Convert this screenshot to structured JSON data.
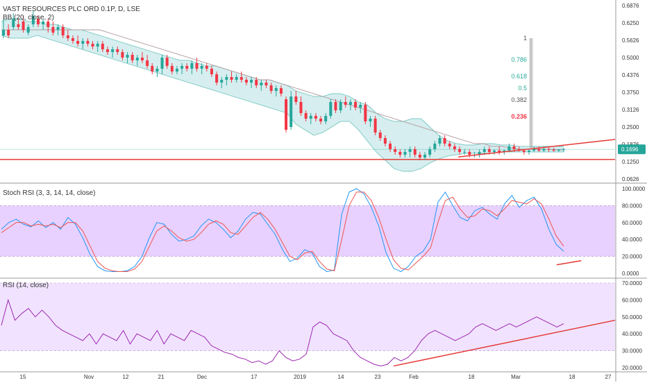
{
  "chart_data": [
    {
      "type": "candlestick",
      "title": "VAST RESOURCES PLC ORD 0.1P, D, LSE",
      "indicator_label": "BB (20, close, 2)",
      "ylim": [
        0.0626,
        0.6876
      ],
      "y_ticks": [
        "0.6876",
        "0.6250",
        "0.5626",
        "0.5000",
        "0.4376",
        "0.3750",
        "0.3126",
        "0.2500",
        "0.1876",
        "0.1250",
        "0.0626"
      ],
      "y_tick_values": [
        0.6876,
        0.625,
        0.5626,
        0.5,
        0.4376,
        0.375,
        0.3126,
        0.25,
        0.1876,
        0.125,
        0.0626
      ],
      "last_price": "0.1696",
      "last_price_value": 0.1696,
      "support_level": 0.133,
      "candles": [
        [
          0.58,
          0.64,
          0.57,
          0.6
        ],
        [
          0.6,
          0.62,
          0.57,
          0.58
        ],
        [
          0.61,
          0.66,
          0.6,
          0.64
        ],
        [
          0.62,
          0.64,
          0.6,
          0.61
        ],
        [
          0.63,
          0.65,
          0.59,
          0.6
        ],
        [
          0.59,
          0.62,
          0.58,
          0.61
        ],
        [
          0.62,
          0.67,
          0.61,
          0.65
        ],
        [
          0.64,
          0.65,
          0.61,
          0.62
        ],
        [
          0.62,
          0.64,
          0.6,
          0.63
        ],
        [
          0.63,
          0.64,
          0.59,
          0.61
        ],
        [
          0.61,
          0.63,
          0.58,
          0.59
        ],
        [
          0.6,
          0.62,
          0.58,
          0.61
        ],
        [
          0.61,
          0.62,
          0.57,
          0.58
        ],
        [
          0.58,
          0.6,
          0.56,
          0.57
        ],
        [
          0.57,
          0.58,
          0.55,
          0.56
        ],
        [
          0.56,
          0.58,
          0.54,
          0.55
        ],
        [
          0.55,
          0.57,
          0.53,
          0.56
        ],
        [
          0.56,
          0.57,
          0.54,
          0.55
        ],
        [
          0.55,
          0.56,
          0.53,
          0.54
        ],
        [
          0.54,
          0.56,
          0.52,
          0.55
        ],
        [
          0.55,
          0.56,
          0.52,
          0.53
        ],
        [
          0.53,
          0.54,
          0.51,
          0.52
        ],
        [
          0.52,
          0.54,
          0.5,
          0.53
        ],
        [
          0.53,
          0.54,
          0.51,
          0.52
        ],
        [
          0.52,
          0.53,
          0.49,
          0.5
        ],
        [
          0.5,
          0.52,
          0.48,
          0.51
        ],
        [
          0.51,
          0.52,
          0.48,
          0.49
        ],
        [
          0.49,
          0.51,
          0.47,
          0.5
        ],
        [
          0.5,
          0.52,
          0.48,
          0.49
        ],
        [
          0.49,
          0.51,
          0.46,
          0.47
        ],
        [
          0.47,
          0.48,
          0.44,
          0.45
        ],
        [
          0.45,
          0.47,
          0.43,
          0.46
        ],
        [
          0.46,
          0.51,
          0.44,
          0.5
        ],
        [
          0.5,
          0.51,
          0.46,
          0.47
        ],
        [
          0.47,
          0.48,
          0.44,
          0.45
        ],
        [
          0.45,
          0.47,
          0.44,
          0.46
        ],
        [
          0.46,
          0.48,
          0.44,
          0.47
        ],
        [
          0.47,
          0.48,
          0.45,
          0.46
        ],
        [
          0.46,
          0.49,
          0.44,
          0.48
        ],
        [
          0.48,
          0.5,
          0.45,
          0.46
        ],
        [
          0.46,
          0.48,
          0.44,
          0.47
        ],
        [
          0.47,
          0.48,
          0.45,
          0.46
        ],
        [
          0.46,
          0.47,
          0.43,
          0.44
        ],
        [
          0.44,
          0.45,
          0.4,
          0.41
        ],
        [
          0.41,
          0.43,
          0.39,
          0.42
        ],
        [
          0.42,
          0.44,
          0.4,
          0.43
        ],
        [
          0.43,
          0.45,
          0.41,
          0.42
        ],
        [
          0.42,
          0.44,
          0.41,
          0.43
        ],
        [
          0.43,
          0.45,
          0.41,
          0.42
        ],
        [
          0.42,
          0.43,
          0.4,
          0.41
        ],
        [
          0.41,
          0.43,
          0.39,
          0.42
        ],
        [
          0.42,
          0.43,
          0.39,
          0.4
        ],
        [
          0.4,
          0.42,
          0.38,
          0.41
        ],
        [
          0.41,
          0.42,
          0.39,
          0.4
        ],
        [
          0.4,
          0.41,
          0.37,
          0.38
        ],
        [
          0.38,
          0.4,
          0.36,
          0.39
        ],
        [
          0.39,
          0.4,
          0.36,
          0.37
        ],
        [
          0.35,
          0.36,
          0.23,
          0.24
        ],
        [
          0.25,
          0.38,
          0.24,
          0.36
        ],
        [
          0.36,
          0.38,
          0.33,
          0.34
        ],
        [
          0.34,
          0.36,
          0.29,
          0.3
        ],
        [
          0.3,
          0.31,
          0.27,
          0.28
        ],
        [
          0.28,
          0.3,
          0.26,
          0.29
        ],
        [
          0.29,
          0.3,
          0.27,
          0.28
        ],
        [
          0.28,
          0.29,
          0.26,
          0.27
        ],
        [
          0.27,
          0.3,
          0.26,
          0.29
        ],
        [
          0.29,
          0.35,
          0.28,
          0.34
        ],
        [
          0.34,
          0.35,
          0.3,
          0.31
        ],
        [
          0.31,
          0.35,
          0.3,
          0.34
        ],
        [
          0.34,
          0.36,
          0.32,
          0.33
        ],
        [
          0.33,
          0.35,
          0.31,
          0.34
        ],
        [
          0.34,
          0.35,
          0.31,
          0.32
        ],
        [
          0.32,
          0.34,
          0.3,
          0.33
        ],
        [
          0.33,
          0.34,
          0.26,
          0.27
        ],
        [
          0.27,
          0.29,
          0.25,
          0.28
        ],
        [
          0.28,
          0.29,
          0.22,
          0.23
        ],
        [
          0.23,
          0.24,
          0.2,
          0.21
        ],
        [
          0.21,
          0.22,
          0.18,
          0.19
        ],
        [
          0.19,
          0.2,
          0.16,
          0.17
        ],
        [
          0.17,
          0.18,
          0.15,
          0.16
        ],
        [
          0.16,
          0.17,
          0.14,
          0.15
        ],
        [
          0.15,
          0.17,
          0.14,
          0.16
        ],
        [
          0.16,
          0.18,
          0.14,
          0.17
        ],
        [
          0.17,
          0.18,
          0.14,
          0.15
        ],
        [
          0.15,
          0.16,
          0.13,
          0.14
        ],
        [
          0.14,
          0.16,
          0.13,
          0.15
        ],
        [
          0.15,
          0.18,
          0.14,
          0.17
        ],
        [
          0.17,
          0.2,
          0.16,
          0.19
        ],
        [
          0.19,
          0.22,
          0.18,
          0.21
        ],
        [
          0.21,
          0.22,
          0.18,
          0.19
        ],
        [
          0.19,
          0.2,
          0.17,
          0.18
        ],
        [
          0.18,
          0.19,
          0.16,
          0.17
        ],
        [
          0.17,
          0.18,
          0.15,
          0.16
        ],
        [
          0.16,
          0.17,
          0.15,
          0.16
        ],
        [
          0.16,
          0.17,
          0.14,
          0.15
        ],
        [
          0.15,
          0.16,
          0.14,
          0.15
        ],
        [
          0.15,
          0.17,
          0.14,
          0.16
        ],
        [
          0.16,
          0.18,
          0.15,
          0.17
        ],
        [
          0.17,
          0.18,
          0.15,
          0.16
        ],
        [
          0.16,
          0.17,
          0.15,
          0.165
        ],
        [
          0.165,
          0.18,
          0.15,
          0.16
        ],
        [
          0.16,
          0.17,
          0.15,
          0.165
        ],
        [
          0.165,
          0.19,
          0.16,
          0.18
        ],
        [
          0.18,
          0.19,
          0.16,
          0.17
        ],
        [
          0.17,
          0.18,
          0.16,
          0.165
        ],
        [
          0.165,
          0.17,
          0.15,
          0.16
        ],
        [
          0.16,
          0.17,
          0.15,
          0.165
        ],
        [
          0.165,
          0.18,
          0.16,
          0.17
        ],
        [
          0.17,
          0.18,
          0.16,
          0.165
        ],
        [
          0.165,
          0.18,
          0.16,
          0.17
        ],
        [
          0.17,
          0.18,
          0.16,
          0.168
        ],
        [
          0.168,
          0.175,
          0.16,
          0.165
        ],
        [
          0.165,
          0.17,
          0.16,
          0.168
        ],
        [
          0.168,
          0.175,
          0.16,
          0.1696
        ]
      ],
      "bollinger_basis": [
        0.6,
        0.6,
        0.6,
        0.6,
        0.6,
        0.6,
        0.6,
        0.6,
        0.6,
        0.6,
        0.6,
        0.6,
        0.59,
        0.58,
        0.57,
        0.56,
        0.55,
        0.54,
        0.53,
        0.52,
        0.51,
        0.5,
        0.49,
        0.48,
        0.47,
        0.46,
        0.45,
        0.44,
        0.43,
        0.42,
        0.42,
        0.41,
        0.4,
        0.39,
        0.38,
        0.37,
        0.36,
        0.35,
        0.34,
        0.33,
        0.32,
        0.31,
        0.3,
        0.29,
        0.28,
        0.27,
        0.26,
        0.25,
        0.24,
        0.23,
        0.22,
        0.21,
        0.2,
        0.19,
        0.19,
        0.18,
        0.18,
        0.175,
        0.17,
        0.17,
        0.17,
        0.17,
        0.168,
        0.168
      ],
      "bollinger_upper": [
        0.63,
        0.64,
        0.64,
        0.63,
        0.63,
        0.62,
        0.62,
        0.61,
        0.6,
        0.6,
        0.59,
        0.58,
        0.57,
        0.56,
        0.55,
        0.54,
        0.53,
        0.52,
        0.51,
        0.5,
        0.49,
        0.49,
        0.48,
        0.47,
        0.47,
        0.46,
        0.45,
        0.44,
        0.43,
        0.42,
        0.42,
        0.41,
        0.4,
        0.38,
        0.37,
        0.36,
        0.36,
        0.37,
        0.37,
        0.36,
        0.34,
        0.33,
        0.3,
        0.28,
        0.27,
        0.27,
        0.28,
        0.28,
        0.25,
        0.22,
        0.2,
        0.19,
        0.185,
        0.185,
        0.19,
        0.19,
        0.185,
        0.185,
        0.18,
        0.18,
        0.18,
        0.18,
        0.18,
        0.18
      ],
      "bollinger_lower": [
        0.58,
        0.57,
        0.57,
        0.57,
        0.58,
        0.57,
        0.56,
        0.55,
        0.54,
        0.53,
        0.52,
        0.51,
        0.5,
        0.49,
        0.48,
        0.47,
        0.46,
        0.45,
        0.44,
        0.43,
        0.42,
        0.41,
        0.4,
        0.39,
        0.38,
        0.37,
        0.36,
        0.35,
        0.34,
        0.33,
        0.32,
        0.31,
        0.3,
        0.26,
        0.24,
        0.22,
        0.23,
        0.25,
        0.27,
        0.27,
        0.24,
        0.2,
        0.16,
        0.13,
        0.1,
        0.09,
        0.09,
        0.1,
        0.12,
        0.135,
        0.145,
        0.15,
        0.155,
        0.155,
        0.155,
        0.155,
        0.16,
        0.16,
        0.16,
        0.16,
        0.16,
        0.16,
        0.16,
        0.16
      ],
      "fib_labels": [
        "1",
        "0.786",
        "0.618",
        "0.5",
        "0.382",
        "0.236"
      ],
      "fib_values": [
        0.57,
        0.493,
        0.432,
        0.39,
        0.348,
        0.288
      ],
      "fib_colors": [
        "#555555",
        "#26a69a",
        "#26a69a",
        "#26a69a",
        "#555555",
        "#f23645"
      ]
    },
    {
      "type": "line",
      "title": "Stoch RSI (3, 3, 14, 14, close)",
      "ylim": [
        0,
        100
      ],
      "y_ticks": [
        "100.0000",
        "80.0000",
        "60.0000",
        "40.0000",
        "20.0000",
        "0.0000"
      ],
      "y_tick_values": [
        100,
        80,
        60,
        40,
        20,
        0
      ],
      "band": [
        20,
        80
      ],
      "series": [
        {
          "color": "#2196f3",
          "values": [
            52,
            60,
            64,
            58,
            55,
            62,
            54,
            60,
            52,
            66,
            58,
            42,
            22,
            8,
            3,
            2,
            2,
            3,
            8,
            20,
            42,
            60,
            58,
            46,
            38,
            40,
            44,
            56,
            64,
            60,
            52,
            42,
            50,
            64,
            72,
            70,
            58,
            46,
            28,
            14,
            18,
            28,
            24,
            8,
            2,
            4,
            70,
            96,
            100,
            94,
            78,
            56,
            24,
            6,
            2,
            8,
            20,
            26,
            40,
            84,
            96,
            80,
            66,
            62,
            74,
            78,
            70,
            64,
            82,
            92,
            78,
            86,
            90,
            76,
            52,
            34,
            26
          ]
        },
        {
          "color": "#ef5350",
          "values": [
            48,
            54,
            60,
            60,
            56,
            58,
            56,
            58,
            54,
            60,
            60,
            50,
            32,
            14,
            6,
            3,
            2,
            2,
            5,
            14,
            32,
            50,
            56,
            50,
            42,
            38,
            40,
            48,
            58,
            62,
            58,
            48,
            46,
            56,
            66,
            72,
            64,
            52,
            36,
            20,
            16,
            24,
            26,
            14,
            5,
            3,
            40,
            80,
            96,
            96,
            86,
            66,
            40,
            16,
            6,
            4,
            12,
            20,
            30,
            60,
            86,
            90,
            76,
            66,
            68,
            76,
            74,
            68,
            76,
            86,
            84,
            82,
            88,
            82,
            64,
            44,
            32
          ]
        }
      ],
      "drawn_line": [
        [
          0.905,
          10
        ],
        [
          0.945,
          15
        ]
      ]
    },
    {
      "type": "line",
      "title": "RSI (14, close)",
      "ylim": [
        20,
        70
      ],
      "y_ticks": [
        "70.0000",
        "60.0000",
        "50.0000",
        "40.0000",
        "30.0000",
        "20.0000"
      ],
      "y_tick_values": [
        70,
        60,
        50,
        40,
        30,
        20
      ],
      "band": [
        30,
        70
      ],
      "series": [
        {
          "color": "#9c27b0",
          "values": [
            45,
            60,
            48,
            52,
            55,
            50,
            54,
            50,
            45,
            42,
            40,
            38,
            36,
            40,
            34,
            40,
            38,
            36,
            42,
            34,
            40,
            38,
            36,
            42,
            34,
            40,
            38,
            36,
            42,
            40,
            38,
            33,
            31,
            29,
            28,
            26,
            25,
            23,
            24,
            22,
            24,
            30,
            26,
            24,
            25,
            28,
            44,
            47,
            45,
            40,
            38,
            36,
            30,
            26,
            24,
            22,
            21,
            22,
            26,
            24,
            26,
            30,
            36,
            40,
            42,
            40,
            38,
            36,
            38,
            40,
            44,
            46,
            44,
            42,
            44,
            46,
            44,
            46,
            48,
            50,
            48,
            46,
            44,
            46
          ]
        }
      ],
      "drawn_line": [
        [
          0.64,
          21
        ],
        [
          1.0,
          48
        ]
      ]
    }
  ],
  "x_axis": {
    "labels": [
      "15",
      "Nov",
      "12",
      "21",
      "Dec",
      "17",
      "2019",
      "14",
      "23",
      "Feb",
      "18",
      "Mar",
      "18",
      "27"
    ]
  },
  "colors": {
    "up": "#26a69a",
    "down": "#f23645",
    "bb_fill": "#d6eef0",
    "bb_line": "#80cbc4",
    "basis": "#b09ca0",
    "stoch_band": "#e8d1ff",
    "rsi_band": "#f1e3ff",
    "trend": "#e53935"
  }
}
